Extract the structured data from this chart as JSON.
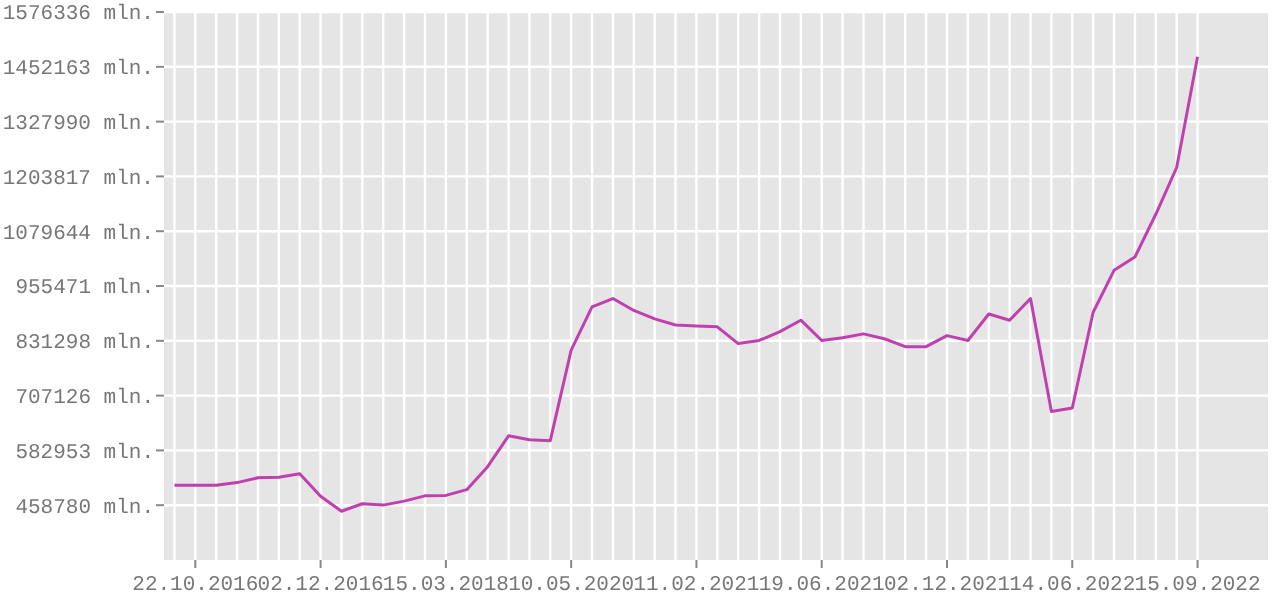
{
  "chart_data": {
    "type": "line",
    "categories": [
      null,
      "22.10.2016",
      null,
      null,
      null,
      null,
      null,
      "02.12.2016",
      null,
      null,
      null,
      null,
      null,
      "15.03.2018",
      null,
      null,
      null,
      null,
      null,
      "10.05.2020",
      null,
      null,
      null,
      null,
      null,
      "11.02.2021",
      null,
      null,
      null,
      null,
      null,
      "19.06.2021",
      null,
      null,
      null,
      null,
      null,
      "02.12.2021",
      null,
      null,
      null,
      null,
      null,
      "14.06.2022",
      null,
      null,
      null,
      null,
      null,
      "15.09.2022"
    ],
    "series": [
      {
        "color": "#c040b0",
        "values": [
          504000,
          504000,
          504000,
          510000,
          521000,
          522000,
          530000,
          479000,
          445000,
          462000,
          459000,
          468000,
          480000,
          481000,
          494000,
          546000,
          616000,
          607000,
          605000,
          810000,
          908000,
          927000,
          900000,
          881000,
          867000,
          865000,
          863000,
          825000,
          832000,
          852000,
          878000,
          832000,
          838000,
          847000,
          836000,
          818000,
          818000,
          843000,
          832000,
          892000,
          878000,
          927000,
          671000,
          679000,
          896000,
          991000,
          1021000,
          1118000,
          1224000,
          1475000
        ]
      }
    ],
    "ylim": [
      334607,
      1576336
    ],
    "yticks": [
      {
        "value": 458780,
        "label": "458780 mln."
      },
      {
        "value": 582953,
        "label": "582953 mln."
      },
      {
        "value": 707126,
        "label": "707126 mln."
      },
      {
        "value": 831298,
        "label": "831298 mln."
      },
      {
        "value": 955471,
        "label": "955471 mln."
      },
      {
        "value": 1079644,
        "label": "1079644 mln."
      },
      {
        "value": 1203817,
        "label": "1203817 mln."
      },
      {
        "value": 1327990,
        "label": "1327990 mln."
      },
      {
        "value": 1452163,
        "label": "1452163 mln."
      },
      {
        "value": 1576336,
        "label": "1576336 mln."
      }
    ],
    "grid": true,
    "marker": "none",
    "line_style": "solid"
  }
}
